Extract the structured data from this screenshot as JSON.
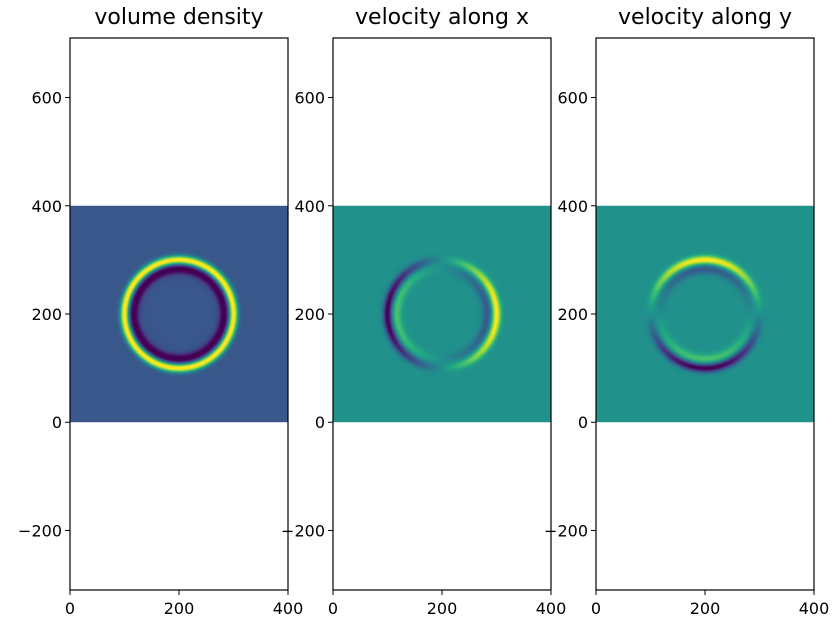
{
  "chart_data": [
    {
      "type": "heatmap",
      "title": "volume density",
      "field": "volume_density",
      "colormap": "viridis",
      "image_extent": {
        "x": [
          0,
          400
        ],
        "y": [
          0,
          400
        ]
      },
      "xlim": [
        0,
        400
      ],
      "ylim": [
        -310,
        710
      ],
      "xticks": [
        0,
        200,
        400
      ],
      "yticks": [
        -200,
        0,
        200,
        400,
        600
      ],
      "pattern": {
        "center": [
          200,
          200
        ],
        "outer_ring_radius": 100,
        "inner_ring_radius": 83,
        "background_level": 0.27
      }
    },
    {
      "type": "heatmap",
      "title": "velocity along x",
      "field": "velocity_x",
      "colormap": "viridis",
      "image_extent": {
        "x": [
          0,
          400
        ],
        "y": [
          0,
          400
        ]
      },
      "xlim": [
        0,
        400
      ],
      "ylim": [
        -310,
        710
      ],
      "xticks": [
        0,
        200,
        400
      ],
      "yticks": [
        -200,
        0,
        200,
        400,
        600
      ],
      "pattern": {
        "center": [
          200,
          200
        ],
        "outer_ring_radius": 100,
        "inner_ring_radius": 83,
        "background_level": 0.5
      }
    },
    {
      "type": "heatmap",
      "title": "velocity along y",
      "field": "velocity_y",
      "colormap": "viridis",
      "image_extent": {
        "x": [
          0,
          400
        ],
        "y": [
          0,
          400
        ]
      },
      "xlim": [
        0,
        400
      ],
      "ylim": [
        -310,
        710
      ],
      "xticks": [
        0,
        200,
        400
      ],
      "yticks": [
        -200,
        0,
        200,
        400,
        600
      ],
      "pattern": {
        "center": [
          200,
          200
        ],
        "outer_ring_radius": 100,
        "inner_ring_radius": 83,
        "background_level": 0.5
      }
    }
  ]
}
